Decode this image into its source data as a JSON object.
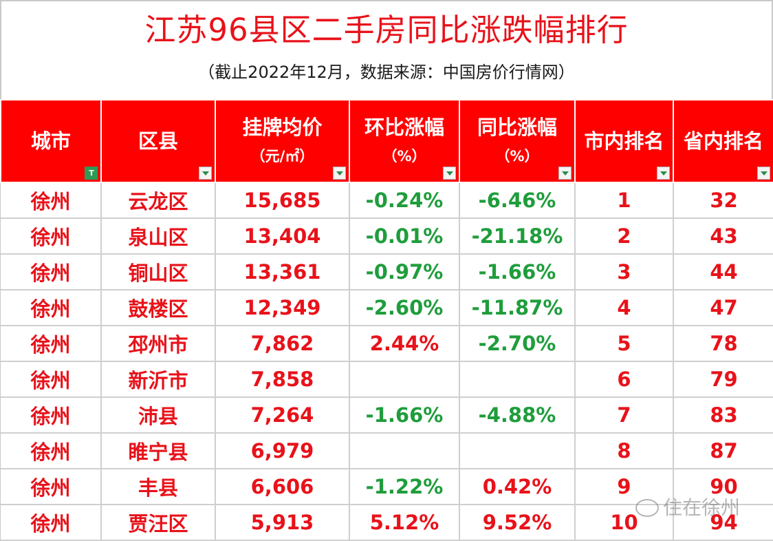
{
  "title": "江苏96县区二手房同比涨跌幅排行",
  "subtitle": "（截止2022年12月，数据来源：中国房价行情网）",
  "headers": {
    "city": "城市",
    "district": "区县",
    "price": "挂牌均价",
    "price_unit": "（元/㎡）",
    "mom": "环比涨幅",
    "mom_unit": "（%）",
    "yoy": "同比涨幅",
    "yoy_unit": "（%）",
    "city_rank": "市内排名",
    "prov_rank": "省内排名"
  },
  "rows": [
    {
      "city": "徐州",
      "district": "云龙区",
      "price": "15,685",
      "mom": "-0.24%",
      "yoy": "-6.46%",
      "city_rank": "1",
      "prov_rank": "32"
    },
    {
      "city": "徐州",
      "district": "泉山区",
      "price": "13,404",
      "mom": "-0.01%",
      "yoy": "-21.18%",
      "city_rank": "2",
      "prov_rank": "43"
    },
    {
      "city": "徐州",
      "district": "铜山区",
      "price": "13,361",
      "mom": "-0.97%",
      "yoy": "-1.66%",
      "city_rank": "3",
      "prov_rank": "44"
    },
    {
      "city": "徐州",
      "district": "鼓楼区",
      "price": "12,349",
      "mom": "-2.60%",
      "yoy": "-11.87%",
      "city_rank": "4",
      "prov_rank": "47"
    },
    {
      "city": "徐州",
      "district": "邳州市",
      "price": "7,862",
      "mom": "2.44%",
      "yoy": "-2.70%",
      "city_rank": "5",
      "prov_rank": "78"
    },
    {
      "city": "徐州",
      "district": "新沂市",
      "price": "7,858",
      "mom": "",
      "yoy": "",
      "city_rank": "6",
      "prov_rank": "79"
    },
    {
      "city": "徐州",
      "district": "沛县",
      "price": "7,264",
      "mom": "-1.66%",
      "yoy": "-4.88%",
      "city_rank": "7",
      "prov_rank": "83"
    },
    {
      "city": "徐州",
      "district": "睢宁县",
      "price": "6,979",
      "mom": "",
      "yoy": "",
      "city_rank": "8",
      "prov_rank": "87"
    },
    {
      "city": "徐州",
      "district": "丰县",
      "price": "6,606",
      "mom": "-1.22%",
      "yoy": "0.42%",
      "city_rank": "9",
      "prov_rank": "90"
    },
    {
      "city": "徐州",
      "district": "贾汪区",
      "price": "5,913",
      "mom": "5.12%",
      "yoy": "9.52%",
      "city_rank": "10",
      "prov_rank": "94"
    }
  ],
  "watermark": "住在徐州",
  "colors": {
    "header_bg": "#ff0000",
    "title": "#e8121a",
    "positive": "#e8121a",
    "negative": "#1f9d3c"
  }
}
